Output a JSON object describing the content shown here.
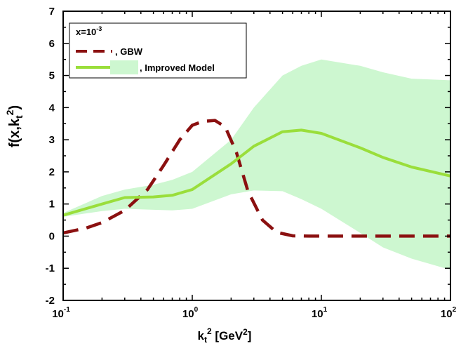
{
  "chart_data": {
    "type": "line",
    "xscale": "log",
    "xlim": [
      0.1,
      100
    ],
    "ylim": [
      -2,
      7
    ],
    "grid": false,
    "legend_placement": "top-left",
    "xlabel": {
      "base": "k",
      "sub": "t",
      "sup": "2",
      "unit_open": " [GeV",
      "unit_sup": "2",
      "unit_close": "]"
    },
    "ylabel": {
      "pre": "f(x,k",
      "sub": "t",
      "sup": "2",
      "post": ")"
    },
    "x_ticks": [
      {
        "value": 0.1,
        "base": "10",
        "exp": "-1"
      },
      {
        "value": 1,
        "base": "10",
        "exp": "0"
      },
      {
        "value": 10,
        "base": "10",
        "exp": "1"
      },
      {
        "value": 100,
        "base": "10",
        "exp": "2"
      }
    ],
    "y_ticks": [
      {
        "value": -2,
        "label": "-2"
      },
      {
        "value": -1,
        "label": "-1"
      },
      {
        "value": 0,
        "label": "0"
      },
      {
        "value": 1,
        "label": "1"
      },
      {
        "value": 2,
        "label": "2"
      },
      {
        "value": 3,
        "label": "3"
      },
      {
        "value": 4,
        "label": "4"
      },
      {
        "value": 5,
        "label": "5"
      },
      {
        "value": 6,
        "label": "6"
      },
      {
        "value": 7,
        "label": "7"
      }
    ],
    "legend": {
      "header_base": "x=10",
      "header_exp": "-3",
      "gbw": ", GBW",
      "improved": ", Improved Model"
    },
    "series": [
      {
        "key": "gbw",
        "style": "dashed",
        "color": "#8b1010",
        "x": [
          0.1,
          0.15,
          0.2,
          0.3,
          0.45,
          0.6,
          0.8,
          1.0,
          1.2,
          1.5,
          1.8,
          2.2,
          2.7,
          3.5,
          4.5,
          6,
          8,
          10,
          20,
          50,
          100
        ],
        "y": [
          0.1,
          0.25,
          0.42,
          0.8,
          1.45,
          2.2,
          3.0,
          3.45,
          3.57,
          3.6,
          3.4,
          2.6,
          1.4,
          0.5,
          0.12,
          0.01,
          0,
          0,
          0,
          0,
          0
        ]
      },
      {
        "key": "improved",
        "style": "solid",
        "color": "#9ade3b",
        "x": [
          0.1,
          0.2,
          0.3,
          0.5,
          0.7,
          1.0,
          2.0,
          3.0,
          5.0,
          7.0,
          10,
          20,
          30,
          50,
          100
        ],
        "y": [
          0.65,
          1.0,
          1.2,
          1.22,
          1.27,
          1.45,
          2.25,
          2.8,
          3.25,
          3.3,
          3.2,
          2.75,
          2.45,
          2.15,
          1.87
        ]
      }
    ],
    "band": {
      "key": "improved",
      "color": "#cdf7d0",
      "x": [
        0.1,
        0.2,
        0.3,
        0.5,
        0.7,
        1.0,
        2.0,
        3.0,
        5.0,
        7.0,
        10,
        20,
        30,
        50,
        100
      ],
      "upper": [
        0.72,
        1.25,
        1.45,
        1.6,
        1.75,
        2.0,
        3.0,
        4.0,
        5.0,
        5.3,
        5.5,
        5.3,
        5.1,
        4.9,
        4.85
      ],
      "lower": [
        0.6,
        0.78,
        0.85,
        0.82,
        0.8,
        0.85,
        1.3,
        1.42,
        1.4,
        1.15,
        0.85,
        0.1,
        -0.35,
        -0.7,
        -1.05
      ]
    }
  }
}
